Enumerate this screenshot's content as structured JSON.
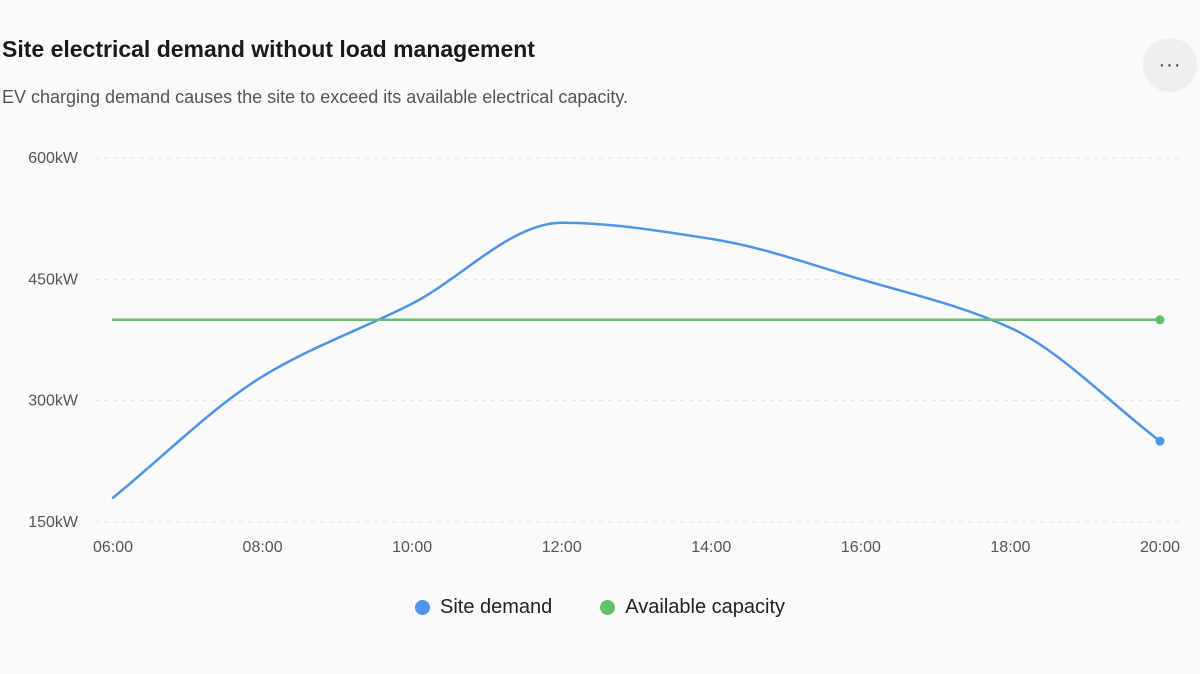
{
  "header": {
    "title": "Site electrical demand without load management",
    "subtitle": "EV charging demand causes the site to exceed its available electrical capacity.",
    "more_label": "···"
  },
  "chart_data": {
    "type": "line",
    "title": "Site electrical demand without load management",
    "x": [
      "06:00",
      "08:00",
      "10:00",
      "12:00",
      "14:00",
      "16:00",
      "18:00",
      "20:00"
    ],
    "x_numeric_hours": [
      6,
      8,
      10,
      12,
      14,
      16,
      18,
      20
    ],
    "ylim": [
      150,
      600
    ],
    "yticks": [
      150,
      300,
      450,
      600
    ],
    "ytick_labels": [
      "150kW",
      "300kW",
      "450kW",
      "600kW"
    ],
    "y_unit": "kW",
    "grid": true,
    "legend_position": "bottom-center",
    "series": [
      {
        "name": "Site demand",
        "color": "#4e95e8",
        "x": [
          6,
          8,
          10,
          12,
          14,
          16,
          18,
          20
        ],
        "values": [
          180,
          330,
          420,
          520,
          500,
          450,
          390,
          250
        ]
      },
      {
        "name": "Available capacity",
        "color": "#63c06e",
        "x": [
          6,
          20
        ],
        "values": [
          400,
          400
        ]
      }
    ]
  }
}
